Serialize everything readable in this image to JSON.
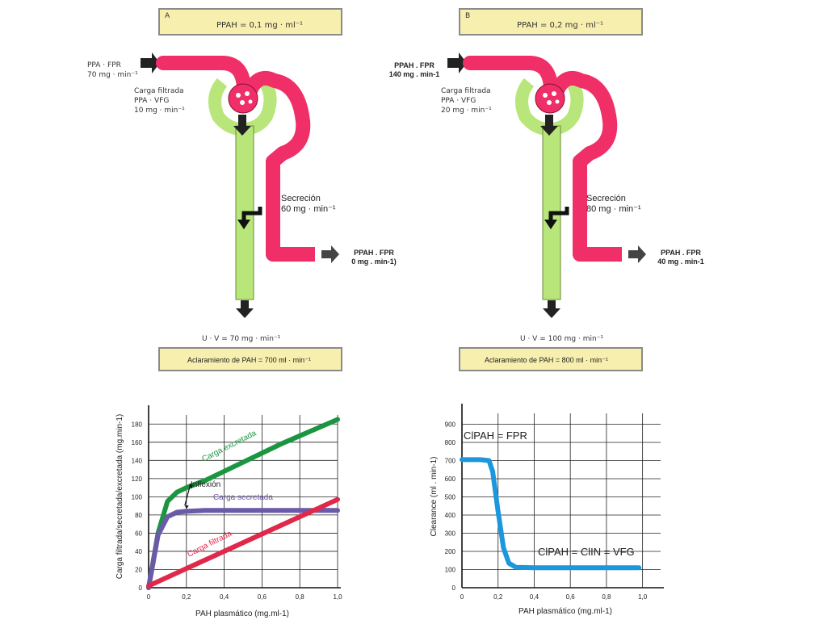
{
  "panelA": {
    "letter": "A",
    "conc_label": "PPAH = 0,1 mg · ml⁻¹",
    "input_label_1": "PPA · FPR",
    "input_value": "70 mg · min⁻¹",
    "filtered_title": "Carga filtrada",
    "filtered_formula": "PPA · VFG",
    "filtered_value": "10 mg · min⁻¹",
    "secretion_title": "Secreción",
    "secretion_value": "60 mg · min⁻¹",
    "output_label_1": "PPAH . FPR",
    "output_value": "0 mg . min-1)",
    "urine_label": "U  · V = 70 mg · min⁻¹",
    "clearance_label": "Aclaramiento de PAH  = 700 ml · min⁻¹"
  },
  "panelB": {
    "letter": "B",
    "conc_label": "PPAH = 0,2 mg · ml⁻¹",
    "input_label_1": "PPAH . FPR",
    "input_value": "140 mg . min-1",
    "filtered_title": "Carga filtrada",
    "filtered_formula": "PPA · VFG",
    "filtered_value": "20 mg · min⁻¹",
    "secretion_title": "Secreción",
    "secretion_value": "80 mg · min⁻¹",
    "output_label_1": "PPAH . FPR",
    "output_value": "40 mg . min-1",
    "urine_label": "U  · V = 100 mg · min⁻¹",
    "clearance_label": "Aclaramiento de PAH  = 800 ml · min⁻¹"
  },
  "colors": {
    "tubule": "#b9e67a",
    "vessel": "#f02e68",
    "excreted": "#1a9640",
    "secreted": "#6b5aa8",
    "filtered": "#e0284a",
    "clearance": "#1c96dc"
  },
  "chart_data": [
    {
      "type": "line",
      "xlabel": "PAH plasmático (mg.ml-1)",
      "ylabel": "Carga filtrada/secretada/excretada (mg.min-1)",
      "xlim": [
        0,
        1.0
      ],
      "ylim": [
        0,
        190
      ],
      "x_ticks": [
        "0",
        "0,2",
        "0,4",
        "0,6",
        "0,8",
        "1,0"
      ],
      "y_ticks": [
        "0",
        "20",
        "40",
        "60",
        "80",
        "100",
        "120",
        "140",
        "160",
        "180"
      ],
      "grid": true,
      "annotation": "Inflexión",
      "series": [
        {
          "name": "Carga excretada",
          "x": [
            0,
            0.05,
            0.1,
            0.15,
            0.2,
            0.3,
            0.5,
            0.7,
            1.0
          ],
          "y": [
            0,
            60,
            95,
            105,
            110,
            118,
            138,
            158,
            185
          ]
        },
        {
          "name": "Carga secretada",
          "x": [
            0,
            0.05,
            0.1,
            0.15,
            0.2,
            0.3,
            0.5,
            0.7,
            1.0
          ],
          "y": [
            0,
            58,
            78,
            83,
            84,
            85,
            85,
            85,
            85
          ]
        },
        {
          "name": "Carga filtrada",
          "x": [
            0,
            1.0
          ],
          "y": [
            2,
            97
          ]
        }
      ]
    },
    {
      "type": "line",
      "xlabel": "PAH plasmático (mg.ml-1)",
      "ylabel": "Clearance (ml . min-1)",
      "xlim": [
        0,
        1.1
      ],
      "ylim": [
        0,
        960
      ],
      "x_ticks": [
        "0",
        "0,2",
        "0,4",
        "0,6",
        "0,8",
        "1,0"
      ],
      "y_ticks": [
        "0",
        "100",
        "200",
        "300",
        "400",
        "500",
        "600",
        "700",
        "800",
        "900"
      ],
      "grid": true,
      "annotations": [
        "ClPAH = FPR",
        "ClPAH = ClIN = VFG"
      ],
      "series": [
        {
          "name": "Clearance PAH",
          "x": [
            0,
            0.1,
            0.15,
            0.17,
            0.2,
            0.23,
            0.26,
            0.3,
            0.4,
            0.6,
            0.8,
            0.98
          ],
          "y": [
            705,
            705,
            700,
            640,
            420,
            220,
            135,
            112,
            110,
            110,
            110,
            110
          ]
        }
      ]
    }
  ]
}
